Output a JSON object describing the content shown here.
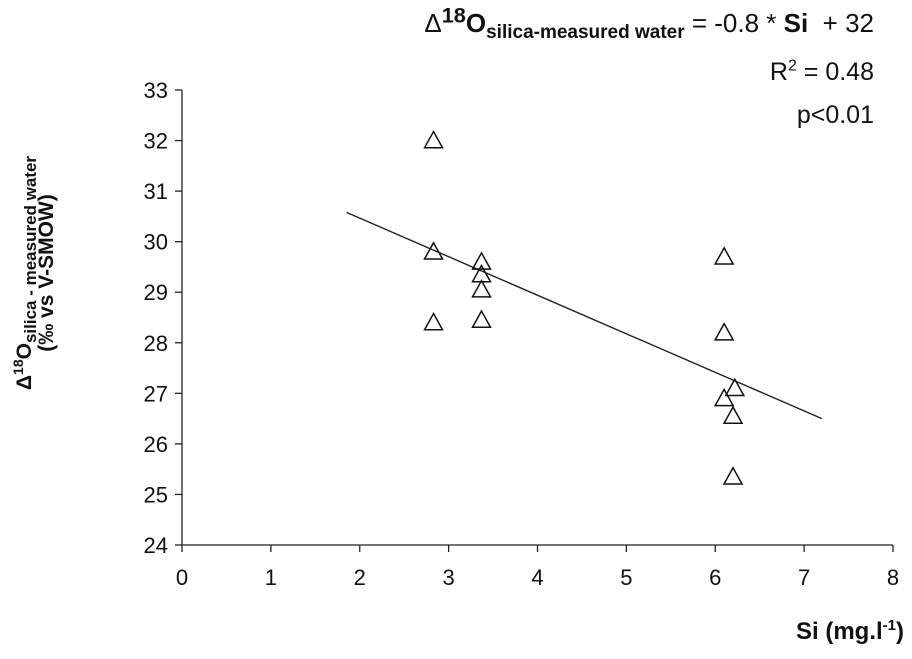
{
  "chart_data": {
    "type": "scatter",
    "equation": {
      "delta": "Δ",
      "sup": "18",
      "o": "O",
      "sub": "silica-measured water",
      "rest1": " = -0.8 * ",
      "si": "Si",
      "rest2": "  + 32"
    },
    "r2": {
      "r": "R",
      "sup": "2",
      "rest": " = 0.48"
    },
    "p_value": "p<0.01",
    "xlabel": {
      "main": "Si (mg.l",
      "sup": "-1",
      "end": ")"
    },
    "ylabel": {
      "line1": {
        "delta": "Δ",
        "sup": "18",
        "o": "O",
        "sub": "silica - measured water"
      },
      "line2": "(‰ vs V-SMOW)"
    },
    "xlim": [
      0,
      8
    ],
    "ylim": [
      24,
      33
    ],
    "xticks": [
      "0",
      "1",
      "2",
      "3",
      "4",
      "5",
      "6",
      "7",
      "8"
    ],
    "yticks": [
      "24",
      "25",
      "26",
      "27",
      "28",
      "29",
      "30",
      "31",
      "32",
      "33"
    ],
    "points": [
      {
        "x": 2.83,
        "y": 32.0
      },
      {
        "x": 2.83,
        "y": 29.8
      },
      {
        "x": 2.83,
        "y": 28.4
      },
      {
        "x": 3.37,
        "y": 29.6
      },
      {
        "x": 3.37,
        "y": 29.35
      },
      {
        "x": 3.37,
        "y": 29.05
      },
      {
        "x": 3.37,
        "y": 28.45
      },
      {
        "x": 6.1,
        "y": 29.7
      },
      {
        "x": 6.1,
        "y": 28.2
      },
      {
        "x": 6.1,
        "y": 26.9
      },
      {
        "x": 6.22,
        "y": 27.1
      },
      {
        "x": 6.2,
        "y": 26.55
      },
      {
        "x": 6.2,
        "y": 25.35
      }
    ],
    "trendline": {
      "x": [
        1.85,
        7.2
      ],
      "y": [
        30.58,
        26.5
      ]
    },
    "marker": "open-triangle",
    "grid": false,
    "legend": "none"
  }
}
